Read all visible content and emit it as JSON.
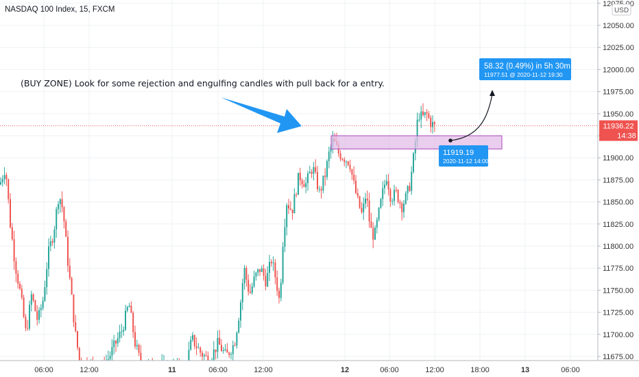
{
  "chart_data": {
    "type": "candlestick",
    "title": "NASDAQ 100 Index, 15, FXCM",
    "currency": "USD",
    "colors": {
      "up": "#26a69a",
      "down": "#ef5350",
      "zone_fill": "#e1bee7",
      "zone_border": "#ab47bc",
      "label_bg": "#2196f3",
      "last_price": "#ef5350",
      "arrow": "#2196f3",
      "grid": "#eef0f3"
    },
    "ylim": [
      11670,
      12080
    ],
    "y_ticks": [
      "11675.00",
      "11700.00",
      "11725.00",
      "11750.00",
      "11775.00",
      "11800.00",
      "11825.00",
      "11850.00",
      "11875.00",
      "11900.00",
      "11925.00",
      "11950.00",
      "11975.00",
      "12000.00",
      "12025.00",
      "12050.00",
      "12075.00"
    ],
    "x_ticks": [
      "06:00",
      "12:00",
      "11",
      "06:00",
      "12:00",
      "12",
      "06:00",
      "12:00",
      "18:00",
      "13",
      "06:00"
    ],
    "last_price": {
      "value": "11936.22",
      "countdown": "14:38"
    },
    "zone_label": {
      "price": "11919.19",
      "time": "2020-11-12 14:00"
    },
    "measure_label": {
      "headline": "58.32 (0.49%) in 5h 30m",
      "detail": "11977.51 @ 2020-11-12  19:30"
    },
    "annotation": "(BUY ZONE) Look for some rejection and engulfing candles with pull back for a entry.",
    "grid": true
  }
}
